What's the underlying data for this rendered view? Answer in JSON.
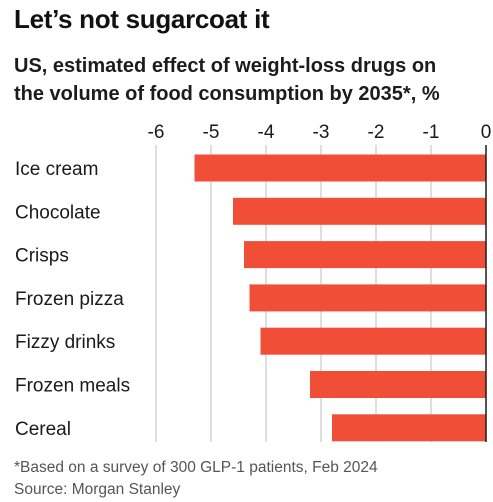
{
  "header": {
    "title": "Let’s not sugarcoat it",
    "subtitle_line1": "US, estimated effect of weight-loss drugs on",
    "subtitle_line2": "the volume of food consumption by 2035*, %"
  },
  "footer": {
    "note": "*Based on a survey of 300 GLP-1 patients, Feb 2024",
    "source": "Source: Morgan Stanley"
  },
  "colors": {
    "bar": "#f04e37",
    "gridline": "#bdbdbd",
    "zero_line": "#1a1a1a"
  },
  "chart_data": {
    "type": "bar",
    "orientation": "horizontal",
    "title": "Let’s not sugarcoat it",
    "subtitle": "US, estimated effect of weight-loss drugs on the volume of food consumption by 2035*, %",
    "categories": [
      "Ice cream",
      "Chocolate",
      "Crisps",
      "Frozen pizza",
      "Fizzy drinks",
      "Frozen meals",
      "Cereal"
    ],
    "values": [
      -5.3,
      -4.6,
      -4.4,
      -4.3,
      -4.1,
      -3.2,
      -2.8
    ],
    "xlim": [
      -6,
      0
    ],
    "xticks": [
      -6,
      -5,
      -4,
      -3,
      -2,
      -1,
      0
    ],
    "xtick_labels": [
      "-6",
      "-5",
      "-4",
      "-3",
      "-2",
      "-1",
      "0"
    ],
    "grid": true,
    "xaxis_position": "top"
  }
}
